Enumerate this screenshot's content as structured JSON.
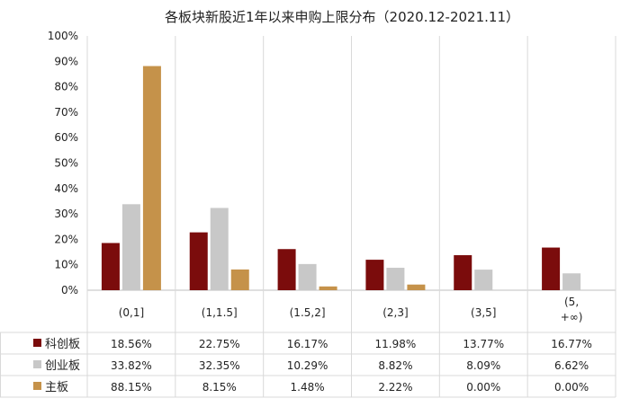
{
  "chart_data": {
    "type": "bar",
    "title": "各板块新股近1年以来申购上限分布（2020.12-2021.11）",
    "categories": [
      "(0,1]",
      "(1,1.5]",
      "(1.5,2]",
      "(2,3]",
      "(3,5]",
      "(5,\n+∞)"
    ],
    "series": [
      {
        "name": "科创板",
        "values": [
          18.56,
          22.75,
          16.17,
          11.98,
          13.77,
          16.77
        ],
        "labels": [
          "18.56%",
          "22.75%",
          "16.17%",
          "11.98%",
          "13.77%",
          "16.77%"
        ],
        "color": "#7B0C0C"
      },
      {
        "name": "创业板",
        "values": [
          33.82,
          32.35,
          10.29,
          8.82,
          8.09,
          6.62
        ],
        "labels": [
          "33.82%",
          "32.35%",
          "10.29%",
          "8.82%",
          "8.09%",
          "6.62%"
        ],
        "color": "#C8C8C8"
      },
      {
        "name": "主板",
        "values": [
          88.15,
          8.15,
          1.48,
          2.22,
          0.0,
          0.0
        ],
        "labels": [
          "88.15%",
          "8.15%",
          "1.48%",
          "2.22%",
          "0.00%",
          "0.00%"
        ],
        "color": "#C5924A"
      }
    ],
    "y_ticks": [
      "0%",
      "10%",
      "20%",
      "30%",
      "40%",
      "50%",
      "60%",
      "70%",
      "80%",
      "90%",
      "100%"
    ],
    "ylim": [
      0,
      100
    ],
    "legend": "data-table",
    "grid": false
  }
}
